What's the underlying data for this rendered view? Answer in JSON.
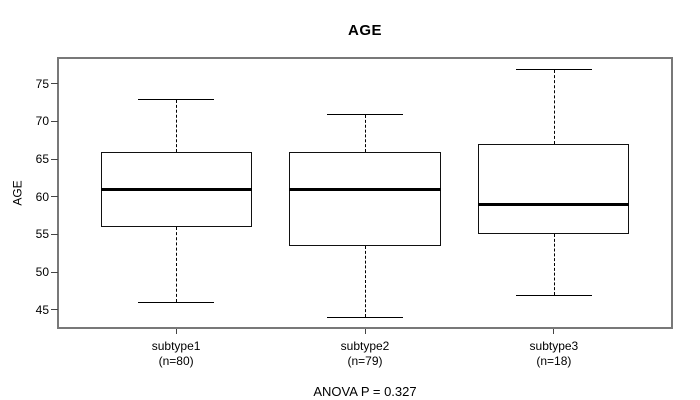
{
  "figure": {
    "title": "AGE",
    "annotation": "ANOVA P = 0.327",
    "colors": {
      "background": "#ffffff",
      "frame": "#787878",
      "line": "#000000",
      "text": "#000000"
    }
  },
  "chart_data": {
    "type": "boxplot",
    "title": "AGE",
    "xlabel": "",
    "ylabel": "AGE",
    "yticks": [
      45,
      50,
      55,
      60,
      65,
      70,
      75
    ],
    "ylim": [
      42.7,
      78.3
    ],
    "grid": false,
    "categories": [
      "subtype1",
      "subtype2",
      "subtype3"
    ],
    "category_sublabels": [
      "(n=80)",
      "(n=79)",
      "(n=18)"
    ],
    "series": [
      {
        "name": "subtype1",
        "n": 80,
        "whisker_low": 46,
        "q1": 56,
        "median": 61,
        "q3": 66,
        "whisker_high": 73
      },
      {
        "name": "subtype2",
        "n": 79,
        "whisker_low": 44,
        "q1": 53.5,
        "median": 61,
        "q3": 66,
        "whisker_high": 71
      },
      {
        "name": "subtype3",
        "n": 18,
        "whisker_low": 47,
        "q1": 55,
        "median": 59,
        "q3": 67,
        "whisker_high": 77
      }
    ],
    "annotation": "ANOVA P = 0.327"
  }
}
